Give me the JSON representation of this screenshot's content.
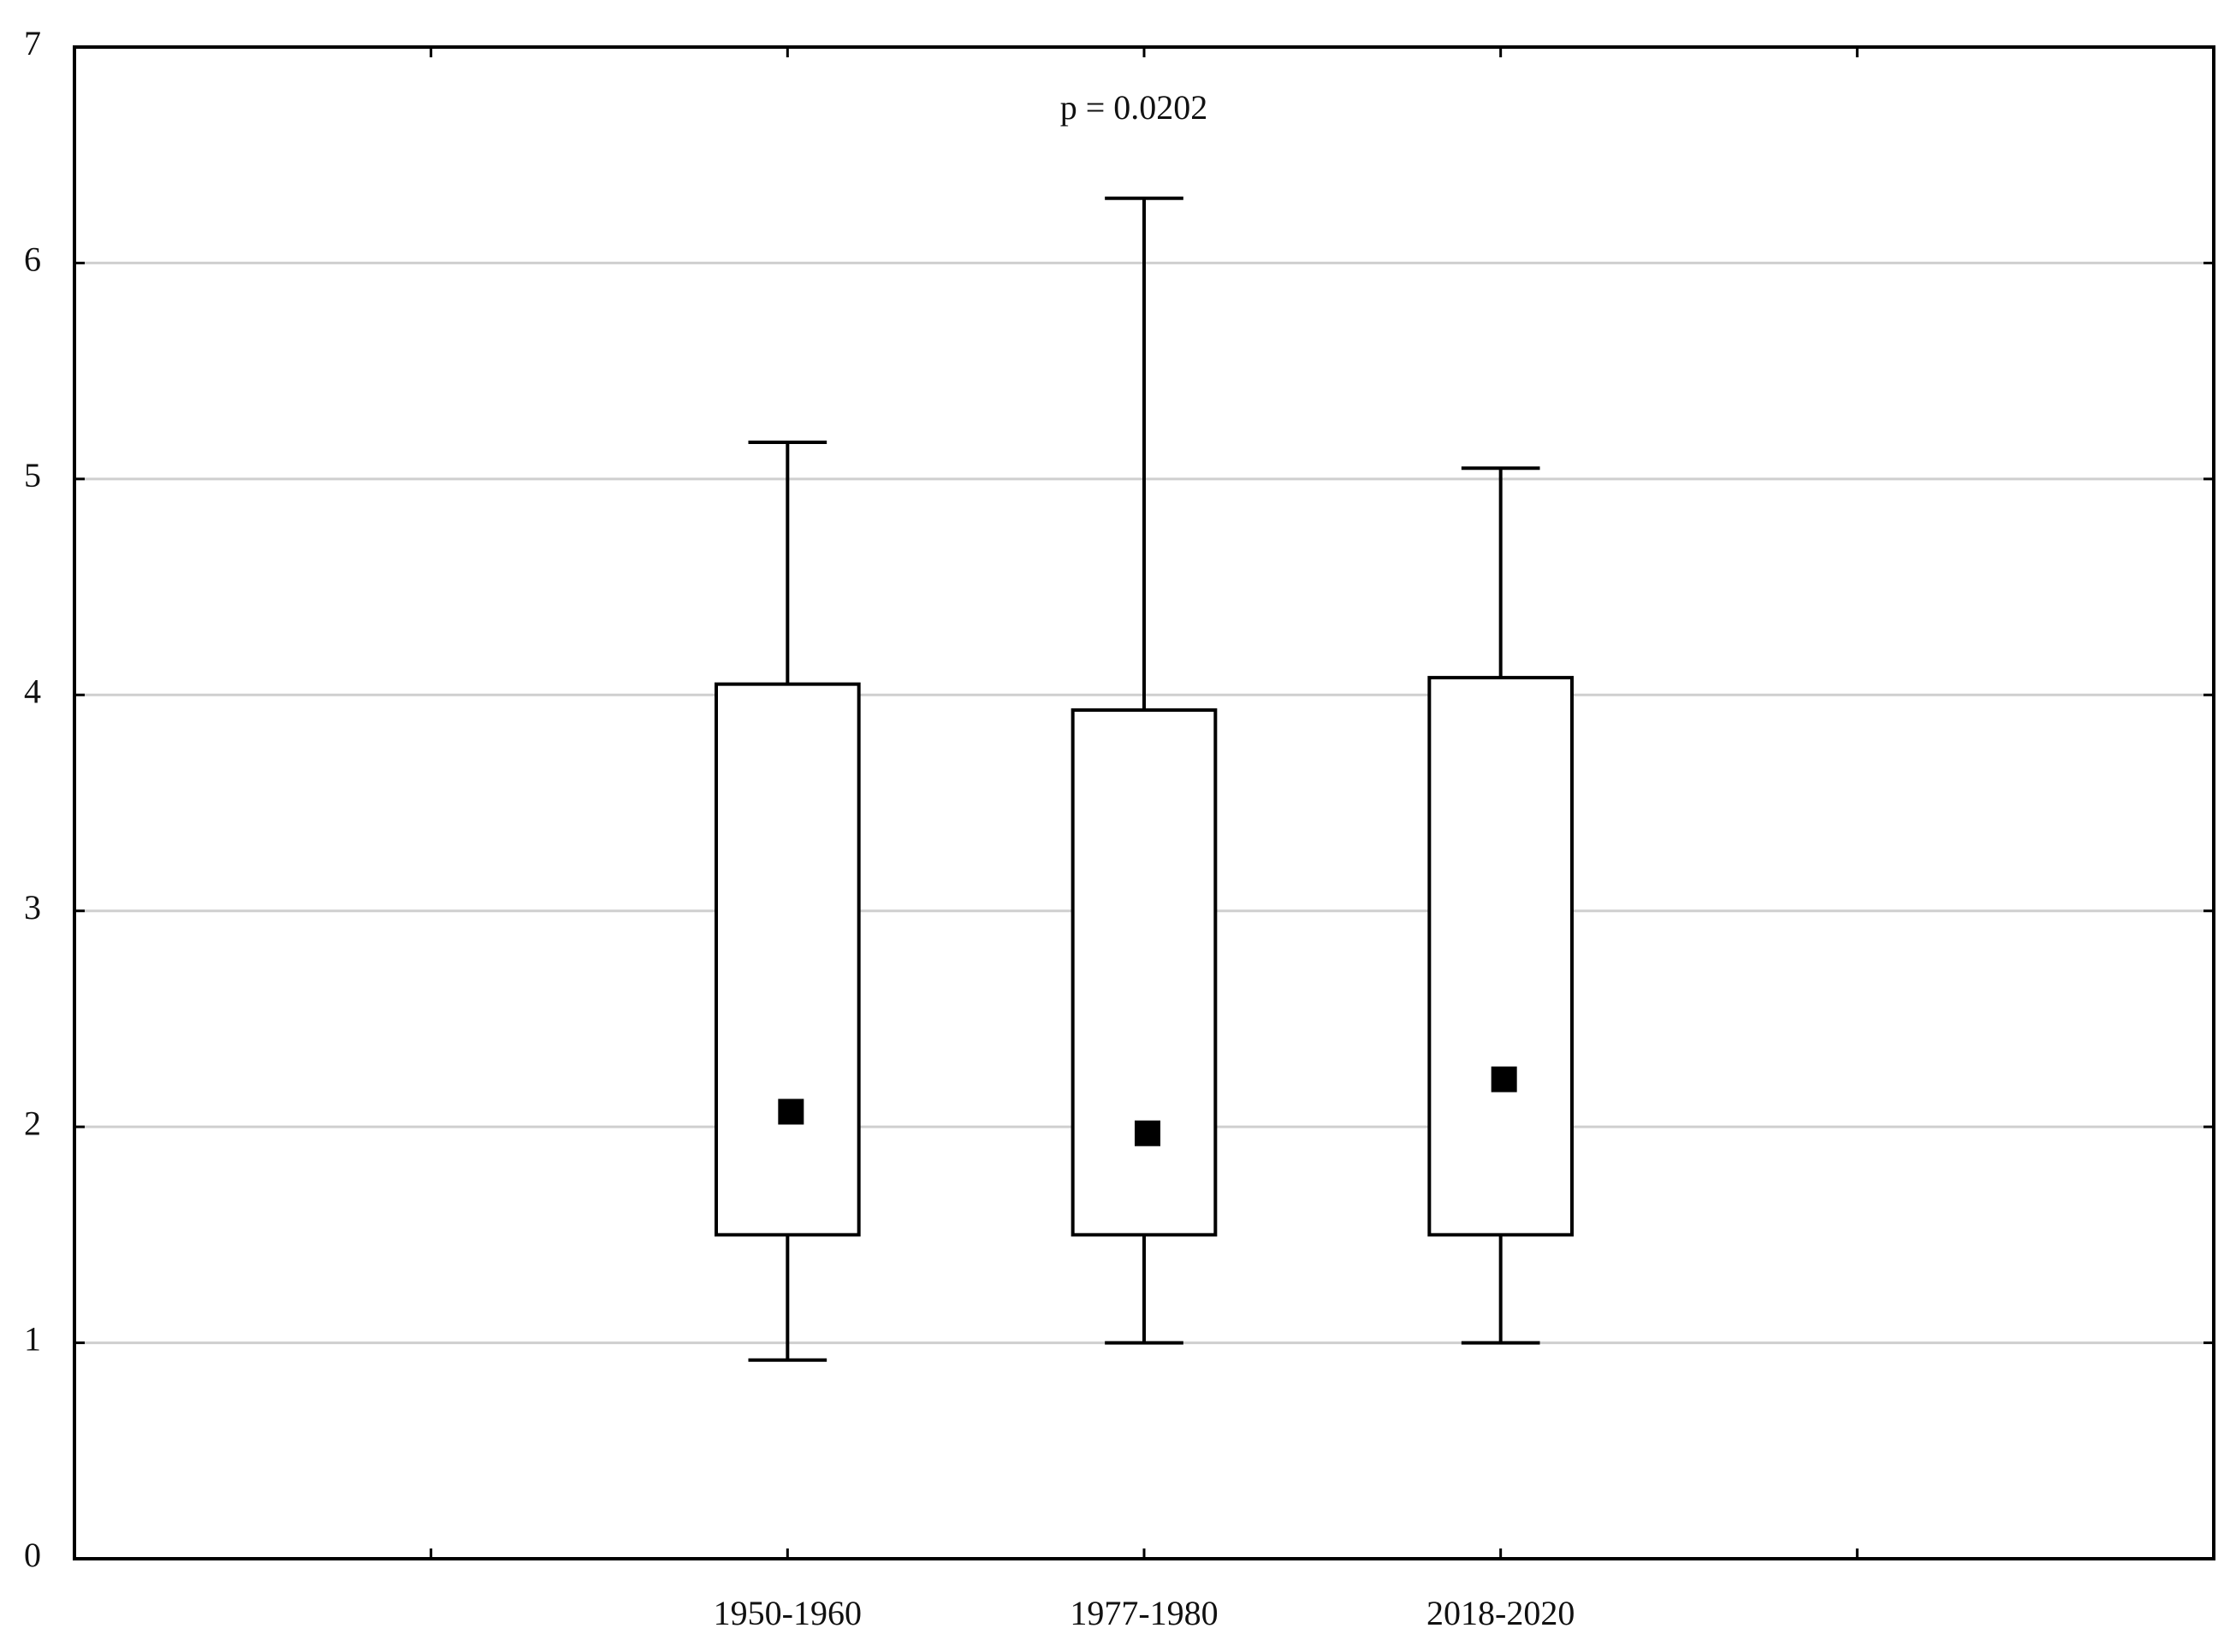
{
  "chart_data": {
    "type": "box",
    "annotation": "p = 0.0202",
    "categories": [
      null,
      "1950-1960",
      "1977-1980",
      "2018-2020",
      null
    ],
    "whisker_low": [
      null,
      0.92,
      1.0,
      1.0,
      null
    ],
    "q1": [
      null,
      1.5,
      1.5,
      1.5,
      null
    ],
    "median": [
      null,
      2.07,
      1.97,
      2.22,
      null
    ],
    "q3": [
      null,
      4.05,
      3.93,
      4.08,
      null
    ],
    "whisker_high": [
      null,
      5.17,
      6.3,
      5.05,
      null
    ],
    "color": "#000000",
    "ylim": [
      0,
      7
    ],
    "yticks": [
      0,
      1,
      2,
      3,
      4,
      5,
      6,
      7
    ],
    "grid": true
  }
}
